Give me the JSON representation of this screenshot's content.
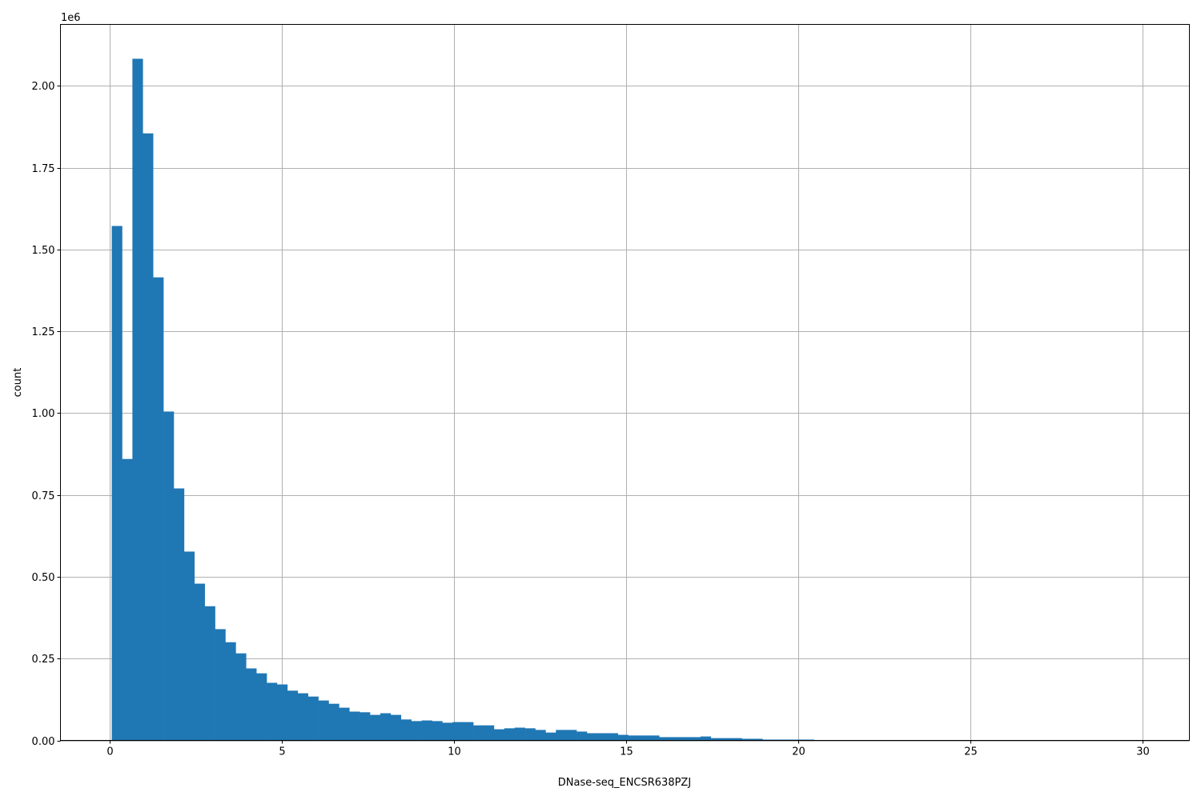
{
  "chart_data": {
    "type": "bar",
    "subtype": "histogram",
    "xlabel": "DNase-seq_ENCSR638PZJ",
    "ylabel": "count",
    "y_offset_label": "1e6",
    "xlim": [
      -1.44,
      31.35
    ],
    "ylim": [
      0,
      2.188
    ],
    "y_scale": 1000000,
    "grid": true,
    "bar_color": "#1f77b4",
    "grid_color": "#b0b0b0",
    "bin_start": 0.05,
    "bin_width": 0.3,
    "x_ticks": [
      "0",
      "5",
      "10",
      "15",
      "20",
      "25",
      "30"
    ],
    "y_ticks": [
      "0.00",
      "0.25",
      "0.50",
      "0.75",
      "1.00",
      "1.25",
      "1.50",
      "1.75",
      "2.00"
    ],
    "values": [
      1.572,
      0.86,
      2.083,
      1.855,
      1.415,
      1.005,
      0.77,
      0.577,
      0.479,
      0.41,
      0.34,
      0.3,
      0.266,
      0.22,
      0.205,
      0.176,
      0.171,
      0.152,
      0.144,
      0.134,
      0.122,
      0.112,
      0.1,
      0.088,
      0.086,
      0.078,
      0.083,
      0.078,
      0.064,
      0.059,
      0.061,
      0.059,
      0.054,
      0.056,
      0.056,
      0.046,
      0.046,
      0.034,
      0.037,
      0.039,
      0.037,
      0.032,
      0.024,
      0.032,
      0.032,
      0.027,
      0.022,
      0.022,
      0.022,
      0.017,
      0.015,
      0.015,
      0.015,
      0.01,
      0.01,
      0.01,
      0.01,
      0.012,
      0.007,
      0.007,
      0.007,
      0.005,
      0.005,
      0.0025,
      0.0025,
      0.0025,
      0.0025,
      0.0025,
      0.0005,
      0.0003
    ]
  }
}
